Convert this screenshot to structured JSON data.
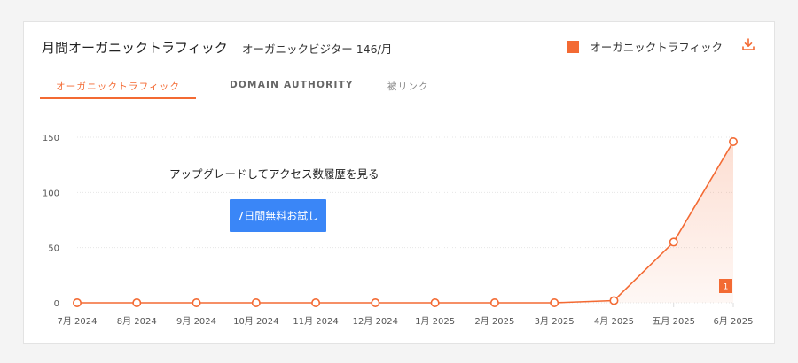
{
  "header": {
    "title": "月間オーガニックトラフィック",
    "visitors_text": "オーガニックビジター 146/月",
    "legend_label": "オーガニックトラフィック",
    "download_icon": "download-icon"
  },
  "tabs": [
    {
      "label": "オーガニックトラフィック",
      "active": true
    },
    {
      "label": "DOMAIN AUTHORITY",
      "active": false
    },
    {
      "label": "被リンク",
      "active": false
    }
  ],
  "overlay": {
    "upgrade_text": "アップグレードしてアクセス数履歴を見る",
    "trial_button_label": "7日間無料お試し"
  },
  "colors": {
    "accent": "#f36a33",
    "trial_button": "#3a86f7",
    "grid": "#e6e6e6"
  },
  "chart_data": {
    "type": "area",
    "x": [
      "7月 2024",
      "8月 2024",
      "9月 2024",
      "10月 2024",
      "11月 2024",
      "12月 2024",
      "1月 2025",
      "2月 2025",
      "3月 2025",
      "4月 2025",
      "五月 2025",
      "6月 2025"
    ],
    "series": [
      {
        "name": "オーガニックトラフィック",
        "values": [
          0,
          0,
          0,
          0,
          0,
          0,
          0,
          0,
          0,
          2,
          55,
          146
        ]
      }
    ],
    "ylim": [
      0,
      150
    ],
    "yticks": [
      0,
      50,
      100,
      150
    ],
    "grid": true,
    "legend_position": "top-right",
    "annotations": [
      {
        "x": "6月 2025",
        "label": "1"
      }
    ]
  }
}
